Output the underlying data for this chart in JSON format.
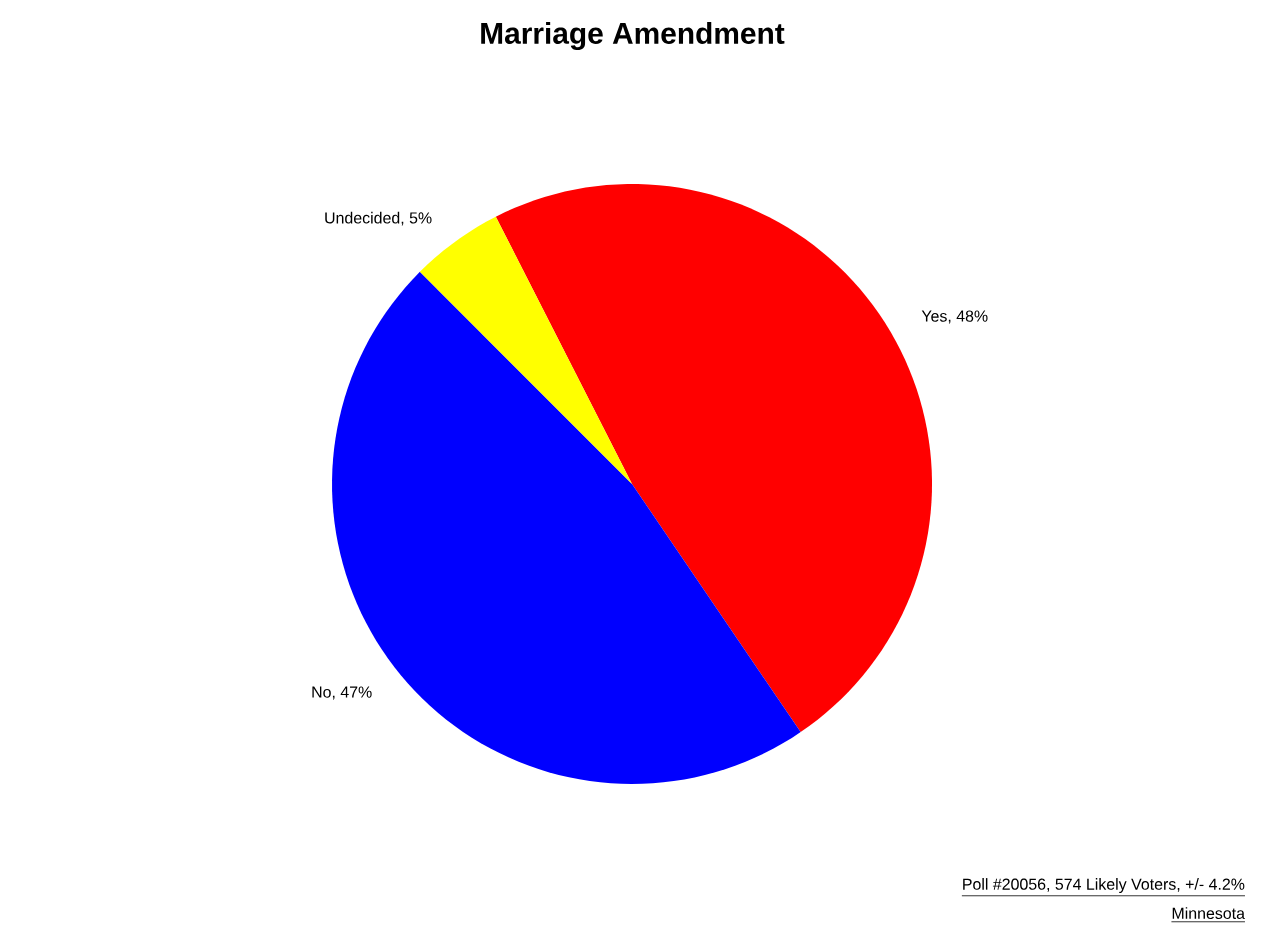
{
  "chart_data": {
    "type": "pie",
    "title": "Marriage Amendment",
    "categories": [
      "Yes, 48%",
      "No, 47%",
      "Undecided, 5%"
    ],
    "values": [
      48,
      47,
      5
    ],
    "colors": [
      "#ff0000",
      "#0000ff",
      "#ffff00"
    ],
    "annotations": [
      "Poll #20056, 574 Likely Voters, +/- 4.2%",
      "Minnesota"
    ]
  }
}
